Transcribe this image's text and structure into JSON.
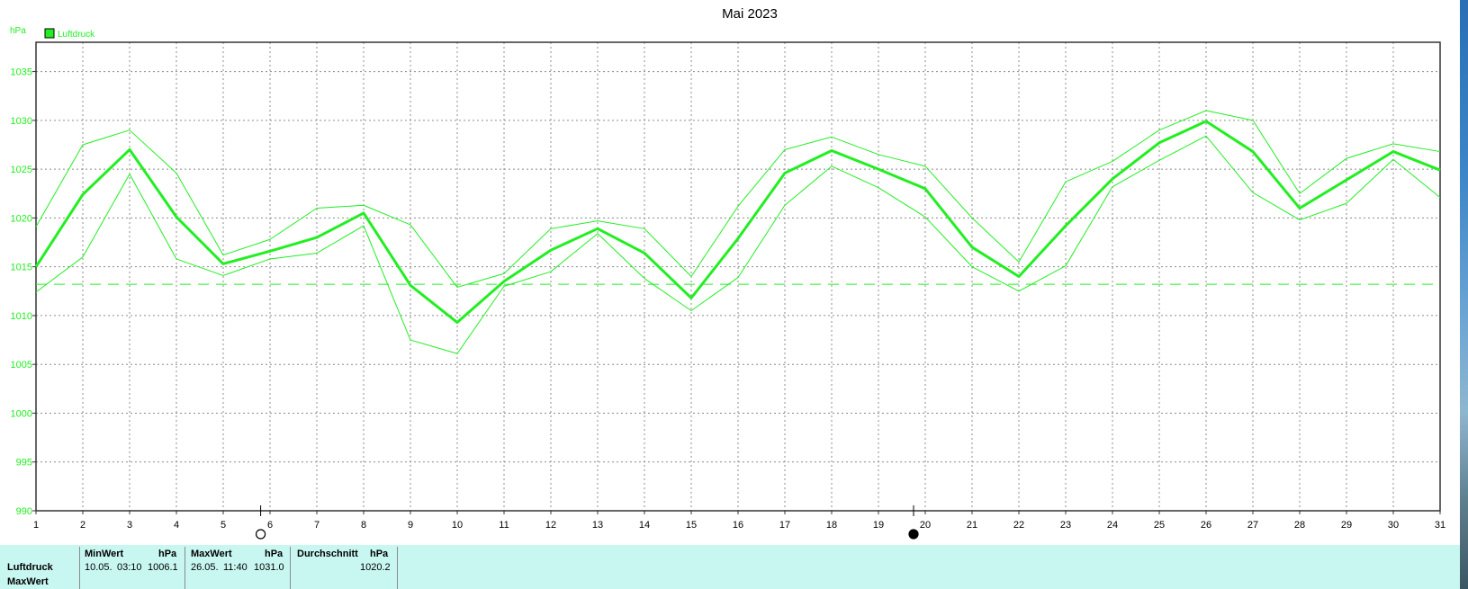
{
  "chart_data": {
    "type": "line",
    "title": "Mai 2023",
    "ylabel": "hPa",
    "legend": "Luftdruck",
    "legend_placement": "top-left",
    "grid": true,
    "xlim": [
      1,
      31
    ],
    "ylim": [
      990,
      1038
    ],
    "y_ticks": [
      990,
      995,
      1000,
      1005,
      1010,
      1015,
      1020,
      1025,
      1030,
      1035
    ],
    "x": [
      1,
      2,
      3,
      4,
      5,
      6,
      7,
      8,
      9,
      10,
      11,
      12,
      13,
      14,
      15,
      16,
      17,
      18,
      19,
      20,
      21,
      22,
      23,
      24,
      25,
      26,
      27,
      28,
      29,
      30,
      31
    ],
    "series": [
      {
        "name": "Luftdruck",
        "values": [
          1015.0,
          1022.4,
          1027.0,
          1020.1,
          1015.3,
          1016.6,
          1018.0,
          1020.5,
          1013.1,
          1009.3,
          1013.5,
          1016.7,
          1018.9,
          1016.4,
          1011.8,
          1017.9,
          1024.6,
          1026.9,
          1025.0,
          1023.0,
          1017.0,
          1014.0,
          1019.2,
          1024.0,
          1027.7,
          1029.9,
          1026.8,
          1021.0,
          1023.9,
          1026.8,
          1024.9
        ]
      },
      {
        "values": [
          1019.1,
          1027.5,
          1029.0,
          1024.6,
          1016.2,
          1017.8,
          1021.0,
          1021.3,
          1019.3,
          1012.9,
          1014.3,
          1018.9,
          1019.7,
          1018.9,
          1014.0,
          1021.2,
          1027.0,
          1028.3,
          1026.5,
          1025.3,
          1020.0,
          1015.5,
          1023.7,
          1025.8,
          1029.0,
          1031.0,
          1030.0,
          1022.5,
          1026.1,
          1027.6,
          1026.8
        ]
      },
      {
        "values": [
          1012.4,
          1016.0,
          1024.5,
          1015.8,
          1014.1,
          1015.8,
          1016.4,
          1019.2,
          1007.5,
          1006.1,
          1013.0,
          1014.5,
          1018.4,
          1013.8,
          1010.5,
          1013.9,
          1021.3,
          1025.3,
          1023.1,
          1020.1,
          1015.0,
          1012.5,
          1015.1,
          1023.2,
          1025.9,
          1028.4,
          1022.6,
          1019.8,
          1021.5,
          1026.0,
          1022.1
        ]
      }
    ],
    "reference_line": {
      "value": 1013.2,
      "style": "dashed"
    },
    "moon_phases": [
      {
        "day": 5.8,
        "phase": "full"
      },
      {
        "day": 19.75,
        "phase": "new"
      }
    ],
    "line_color": "#22ee22",
    "grid_color": "#8c8c8c"
  },
  "stats": {
    "row_label": "Luftdruck",
    "row_label_2": "MaxWert",
    "min": {
      "header": "MinWert",
      "unit": "hPa",
      "date": "10.05.",
      "time": "03:10",
      "value": "1006.1"
    },
    "max": {
      "header": "MaxWert",
      "unit": "hPa",
      "date": "26.05.",
      "time": "11:40",
      "value": "1031.0"
    },
    "avg": {
      "header": "Durchschnitt",
      "unit": "hPa",
      "value": "1020.2"
    }
  }
}
